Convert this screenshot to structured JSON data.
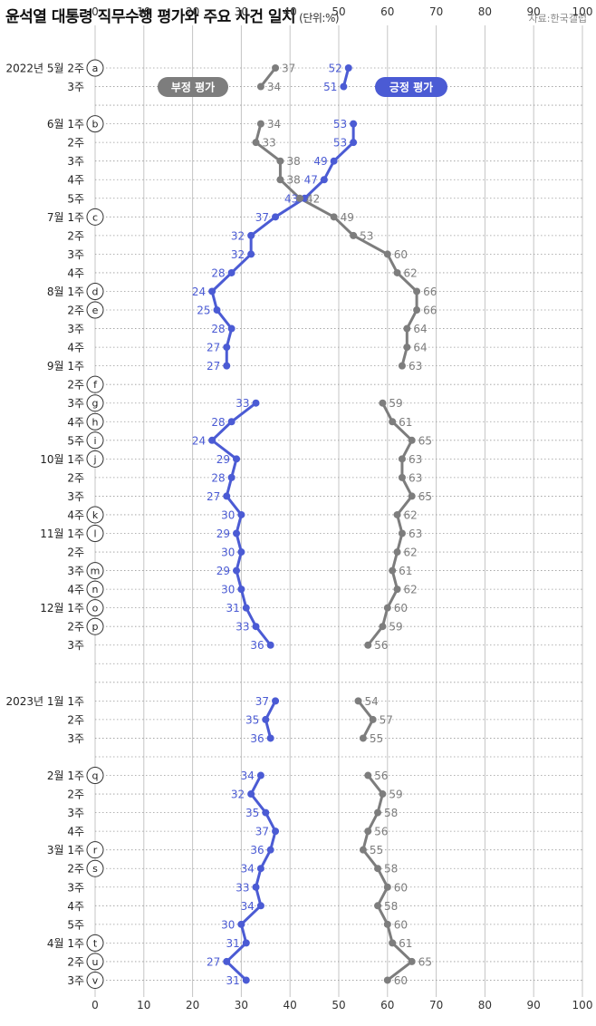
{
  "title": "윤석열 대통령 직무수행 평가와 주요 사건 일지",
  "unit": "(단위:%)",
  "source": "자료:한국갤럽",
  "colors": {
    "positive": "#4b5bd4",
    "negative": "#7d7d7d",
    "grid": "#b8b8b8"
  },
  "chart_data": {
    "type": "line",
    "title": "윤석열 대통령 직무수행 평가와 주요 사건 일지",
    "xlabel": "",
    "ylabel": "",
    "xlim": [
      0,
      100
    ],
    "ticks": [
      0,
      10,
      20,
      30,
      40,
      50,
      60,
      70,
      80,
      90,
      100
    ],
    "grid": true,
    "rows": [
      {
        "label": "2022년 5월 2주",
        "event": "a",
        "pos": 52,
        "neg": 37
      },
      {
        "label": "3주",
        "event": "",
        "pos": 51,
        "neg": 34
      },
      {
        "label": "",
        "event": "",
        "pos": null,
        "neg": null
      },
      {
        "label": "6월 1주",
        "event": "b",
        "pos": 53,
        "neg": 34
      },
      {
        "label": "2주",
        "event": "",
        "pos": 53,
        "neg": 33
      },
      {
        "label": "3주",
        "event": "",
        "pos": 49,
        "neg": 38
      },
      {
        "label": "4주",
        "event": "",
        "pos": 47,
        "neg": 38
      },
      {
        "label": "5주",
        "event": "",
        "pos": 43,
        "neg": 42
      },
      {
        "label": "7월 1주",
        "event": "c",
        "pos": 37,
        "neg": 49
      },
      {
        "label": "2주",
        "event": "",
        "pos": 32,
        "neg": 53
      },
      {
        "label": "3주",
        "event": "",
        "pos": 32,
        "neg": 60
      },
      {
        "label": "4주",
        "event": "",
        "pos": 28,
        "neg": 62
      },
      {
        "label": "8월 1주",
        "event": "d",
        "pos": 24,
        "neg": 66
      },
      {
        "label": "2주",
        "event": "e",
        "pos": 25,
        "neg": 66
      },
      {
        "label": "3주",
        "event": "",
        "pos": 28,
        "neg": 64
      },
      {
        "label": "4주",
        "event": "",
        "pos": 27,
        "neg": 64
      },
      {
        "label": "9월 1주",
        "event": "",
        "pos": 27,
        "neg": 63
      },
      {
        "label": "2주",
        "event": "f",
        "pos": null,
        "neg": null
      },
      {
        "label": "3주",
        "event": "g",
        "pos": 33,
        "neg": 59
      },
      {
        "label": "4주",
        "event": "h",
        "pos": 28,
        "neg": 61
      },
      {
        "label": "5주",
        "event": "i",
        "pos": 24,
        "neg": 65
      },
      {
        "label": "10월 1주",
        "event": "j",
        "pos": 29,
        "neg": 63
      },
      {
        "label": "2주",
        "event": "",
        "pos": 28,
        "neg": 63
      },
      {
        "label": "3주",
        "event": "",
        "pos": 27,
        "neg": 65
      },
      {
        "label": "4주",
        "event": "k",
        "pos": 30,
        "neg": 62
      },
      {
        "label": "11월 1주",
        "event": "l",
        "pos": 29,
        "neg": 63
      },
      {
        "label": "2주",
        "event": "",
        "pos": 30,
        "neg": 62
      },
      {
        "label": "3주",
        "event": "m",
        "pos": 29,
        "neg": 61
      },
      {
        "label": "4주",
        "event": "n",
        "pos": 30,
        "neg": 62
      },
      {
        "label": "12월 1주",
        "event": "o",
        "pos": 31,
        "neg": 60
      },
      {
        "label": "2주",
        "event": "p",
        "pos": 33,
        "neg": 59
      },
      {
        "label": "3주",
        "event": "",
        "pos": 36,
        "neg": 56
      },
      {
        "label": "",
        "event": "",
        "pos": null,
        "neg": null
      },
      {
        "label": "",
        "event": "",
        "pos": null,
        "neg": null
      },
      {
        "label": "2023년 1월 1주",
        "event": "",
        "pos": 37,
        "neg": 54
      },
      {
        "label": "2주",
        "event": "",
        "pos": 35,
        "neg": 57
      },
      {
        "label": "3주",
        "event": "",
        "pos": 36,
        "neg": 55
      },
      {
        "label": "",
        "event": "",
        "pos": null,
        "neg": null
      },
      {
        "label": "2월 1주",
        "event": "q",
        "pos": 34,
        "neg": 56
      },
      {
        "label": "2주",
        "event": "",
        "pos": 32,
        "neg": 59
      },
      {
        "label": "3주",
        "event": "",
        "pos": 35,
        "neg": 58
      },
      {
        "label": "4주",
        "event": "",
        "pos": 37,
        "neg": 56
      },
      {
        "label": "3월 1주",
        "event": "r",
        "pos": 36,
        "neg": 55
      },
      {
        "label": "2주",
        "event": "s",
        "pos": 34,
        "neg": 58
      },
      {
        "label": "3주",
        "event": "",
        "pos": 33,
        "neg": 60
      },
      {
        "label": "4주",
        "event": "",
        "pos": 34,
        "neg": 58
      },
      {
        "label": "5주",
        "event": "",
        "pos": 30,
        "neg": 60
      },
      {
        "label": "4월 1주",
        "event": "t",
        "pos": 31,
        "neg": 61
      },
      {
        "label": "2주",
        "event": "u",
        "pos": 27,
        "neg": 65
      },
      {
        "label": "3주",
        "event": "v",
        "pos": 31,
        "neg": 60
      }
    ],
    "series": [
      {
        "name": "긍정 평가",
        "key": "pos",
        "color": "#4b5bd4",
        "label_side": "left"
      },
      {
        "name": "부정 평가",
        "key": "neg",
        "color": "#7d7d7d",
        "label_side": "right"
      }
    ],
    "legend": {
      "negative_label": "부정 평가",
      "positive_label": "긍정 평가"
    }
  }
}
